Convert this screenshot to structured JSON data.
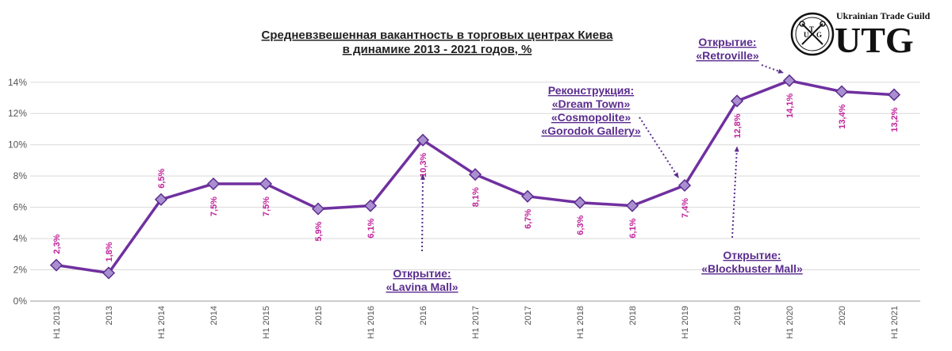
{
  "colors": {
    "line": "#7030a0",
    "marker_fill": "#a98fd0",
    "marker_stroke": "#5b2d8e",
    "data_label": "#c0229a",
    "annotation": "#5b2d8e",
    "grid": "#d9d9d9"
  },
  "logo": {
    "guild_text": "Ukrainian Trade Guild",
    "brand": "UTG",
    "seal_letters": [
      "U",
      "T",
      "G"
    ]
  },
  "chart_data": {
    "type": "line",
    "title": [
      "Средневзвешенная вакантность в торговых центрах Киева",
      "в динамике 2013 - 2021 годов, %"
    ],
    "categories": [
      "H1 2013",
      "2013",
      "H1 2014",
      "2014",
      "H1 2015",
      "2015",
      "H1 2016",
      "2016",
      "H1 2017",
      "2017",
      "H1 2018",
      "2018",
      "H1 2019",
      "2019",
      "H1 2020",
      "2020",
      "H1 2021"
    ],
    "values": [
      2.3,
      1.8,
      6.5,
      7.5,
      7.5,
      5.9,
      6.1,
      10.3,
      8.1,
      6.7,
      6.3,
      6.1,
      7.4,
      12.8,
      14.1,
      13.4,
      13.2
    ],
    "data_labels": [
      "2,3%",
      "1,8%",
      "6,5%",
      "7,5%",
      "7,5%",
      "5,9%",
      "6,1%",
      "10,3%",
      "8,1%",
      "6,7%",
      "6,3%",
      "6,1%",
      "7,4%",
      "12,8%",
      "14,1%",
      "13,4%",
      "13,2%"
    ],
    "y_ticks": [
      0,
      2,
      4,
      6,
      8,
      10,
      12,
      14
    ],
    "y_tick_labels": [
      "0%",
      "2%",
      "4%",
      "6%",
      "8%",
      "10%",
      "12%",
      "14%"
    ],
    "ylim": [
      0,
      14.8
    ],
    "grid": true,
    "xlabel": "",
    "ylabel": "",
    "annotations": [
      {
        "id": "lavina",
        "target_index": 7,
        "lines": [
          "Открытие:",
          "«Lavina Mall»"
        ]
      },
      {
        "id": "reconstruction",
        "target_index": 12,
        "lines": [
          "Реконструкция:",
          "«Dream Town»",
          "«Cosmopolite»",
          "«Gorodok Gallery»"
        ]
      },
      {
        "id": "blockbuster",
        "target_index": 13,
        "lines": [
          "Открытие:",
          "«Blockbuster Mall»"
        ]
      },
      {
        "id": "retroville",
        "target_index": 14,
        "lines": [
          "Открытие:",
          "«Retroville»"
        ]
      }
    ]
  }
}
